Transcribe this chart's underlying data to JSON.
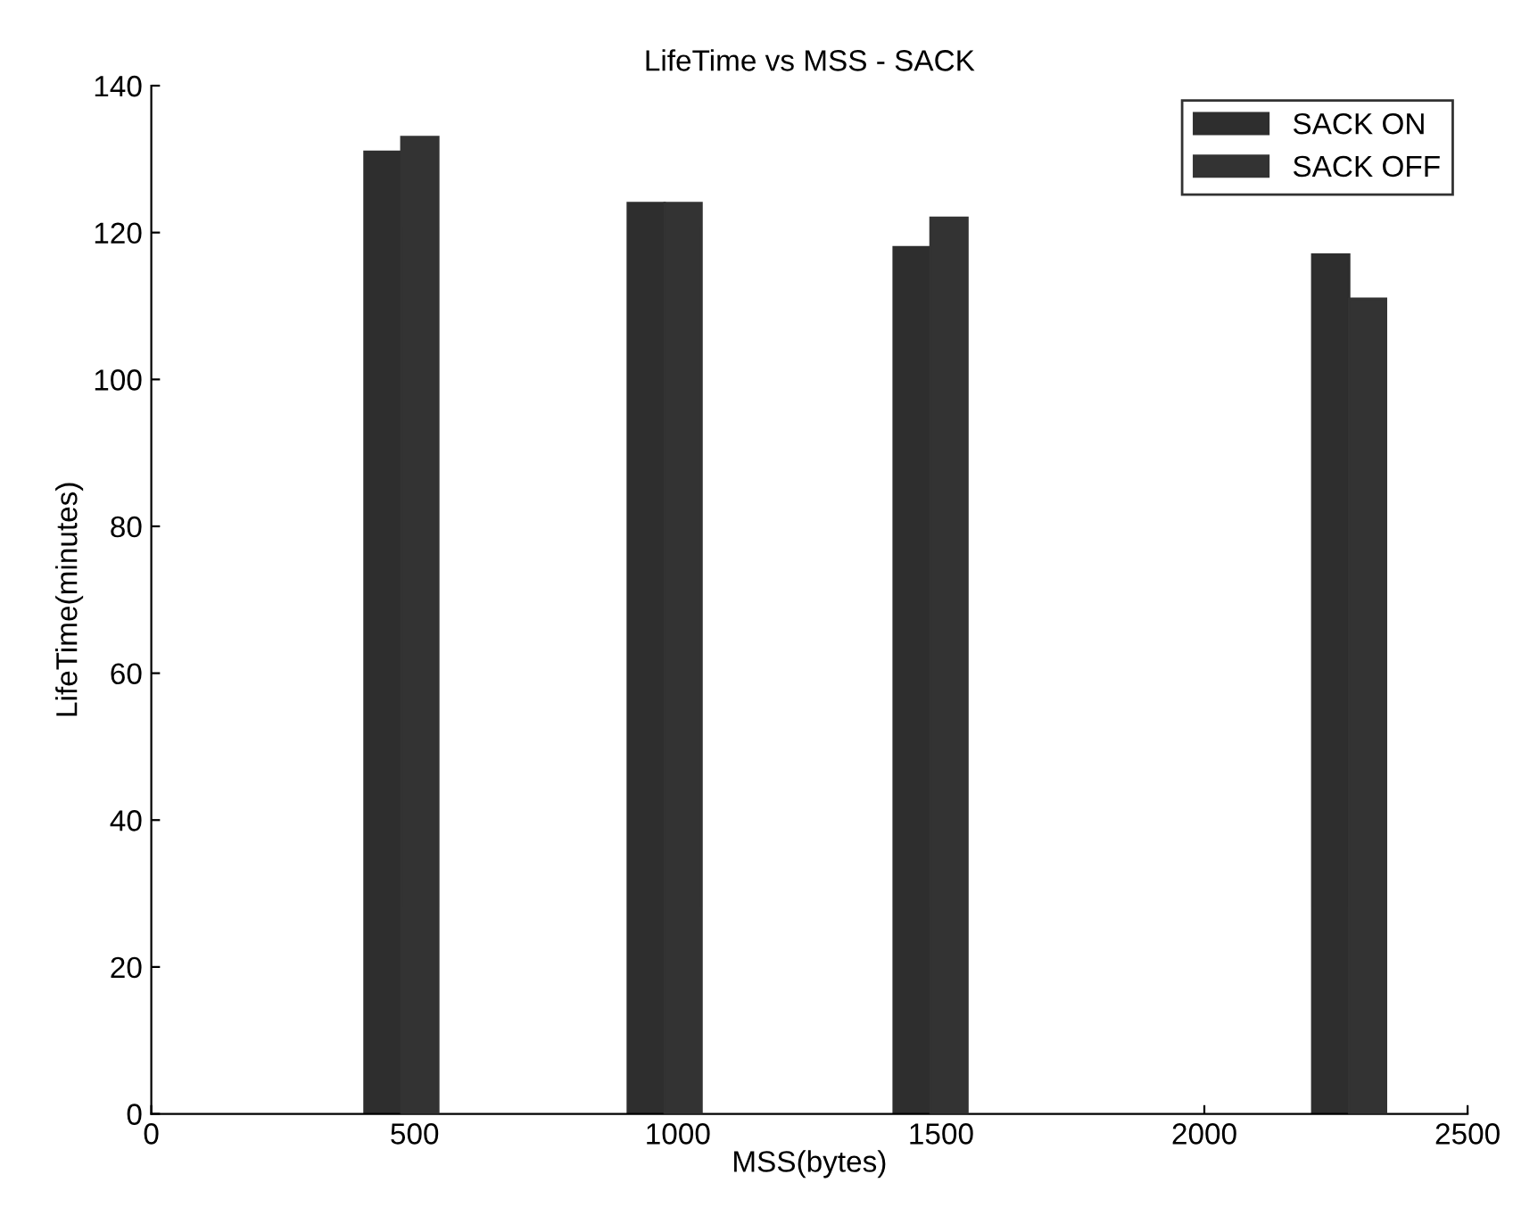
{
  "chart_data": {
    "type": "bar",
    "title": "LifeTime vs MSS - SACK",
    "xlabel": "MSS(bytes)",
    "ylabel": "LifeTime(minutes)",
    "x": [
      475,
      975,
      1480,
      2275
    ],
    "series": [
      {
        "name": "SACK ON",
        "color": "#2e2e2e",
        "values": [
          131,
          124,
          118,
          117
        ]
      },
      {
        "name": "SACK OFF",
        "color": "#333333",
        "values": [
          133,
          124,
          122,
          111
        ]
      }
    ],
    "xlim": [
      0,
      2500
    ],
    "xticks": [
      0,
      500,
      1000,
      1500,
      2000,
      2500
    ],
    "ylim": [
      0,
      140
    ],
    "yticks": [
      0,
      20,
      40,
      60,
      80,
      100,
      120,
      140
    ],
    "grid": false,
    "legend": "top right"
  }
}
